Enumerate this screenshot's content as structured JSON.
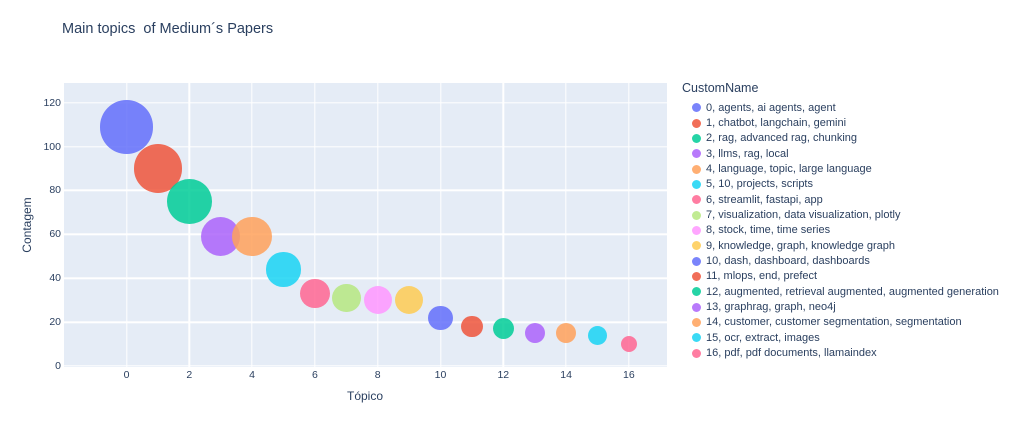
{
  "title": "Main topics  of Medium´s Papers",
  "chart_data": {
    "type": "scatter",
    "title": "Main topics  of Medium´s Papers",
    "xlabel": "Tópico",
    "ylabel": "Contagem",
    "legend_title": "CustomName",
    "legend_position": "right",
    "grid": true,
    "size_by": "count",
    "x_ticks": [
      0,
      2,
      4,
      6,
      8,
      10,
      12,
      14,
      16
    ],
    "y_ticks": [
      0,
      20,
      40,
      60,
      80,
      100,
      120
    ],
    "xlim": [
      -2.05,
      17.2
    ],
    "ylim": [
      -0.5,
      129
    ],
    "plot_bg_color": "#E5ECF6",
    "grid_color": "#FFFFFF",
    "text_color": "#2a3f5f",
    "marker_opacity": 0.85,
    "series": [
      {
        "topic": 0,
        "label": "0, agents, ai agents, agent",
        "count": 109,
        "color": "#636EFA"
      },
      {
        "topic": 1,
        "label": "1, chatbot, langchain, gemini",
        "count": 90,
        "color": "#EF553B"
      },
      {
        "topic": 2,
        "label": "2, rag, advanced rag, chunking",
        "count": 75,
        "color": "#00CC96"
      },
      {
        "topic": 3,
        "label": "3, llms, rag, local",
        "count": 59,
        "color": "#AB63FA"
      },
      {
        "topic": 4,
        "label": "4, language, topic, large language",
        "count": 59,
        "color": "#FFA15A"
      },
      {
        "topic": 5,
        "label": "5, 10, projects, scripts",
        "count": 44,
        "color": "#19D3F3"
      },
      {
        "topic": 6,
        "label": "6, streamlit, fastapi, app",
        "count": 33,
        "color": "#FF6692"
      },
      {
        "topic": 7,
        "label": "7, visualization, data visualization, plotly",
        "count": 31,
        "color": "#B6E880"
      },
      {
        "topic": 8,
        "label": "8, stock, time, time series",
        "count": 30,
        "color": "#FF97FF"
      },
      {
        "topic": 9,
        "label": "9, knowledge, graph, knowledge graph",
        "count": 30,
        "color": "#FECB52"
      },
      {
        "topic": 10,
        "label": "10, dash, dashboard, dashboards",
        "count": 22,
        "color": "#636EFA"
      },
      {
        "topic": 11,
        "label": "11, mlops, end, prefect",
        "count": 18,
        "color": "#EF553B"
      },
      {
        "topic": 12,
        "label": "12, augmented, retrieval augmented, augmented generation",
        "count": 17,
        "color": "#00CC96"
      },
      {
        "topic": 13,
        "label": "13, graphrag, graph, neo4j",
        "count": 15,
        "color": "#AB63FA"
      },
      {
        "topic": 14,
        "label": "14, customer, customer segmentation, segmentation",
        "count": 15,
        "color": "#FFA15A"
      },
      {
        "topic": 15,
        "label": "15, ocr, extract, images",
        "count": 14,
        "color": "#19D3F3"
      },
      {
        "topic": 16,
        "label": "16, pdf, pdf documents, llamaindex",
        "count": 10,
        "color": "#FF6692"
      }
    ]
  }
}
